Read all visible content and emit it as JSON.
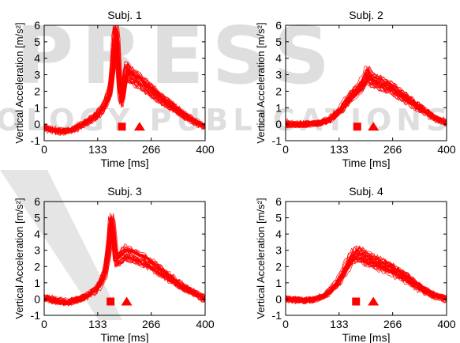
{
  "watermark": {
    "line1": "PRESS",
    "line2": "OLOGY PUBLICATIONS",
    "color": "#d9d9d9"
  },
  "chart_data": [
    {
      "type": "line",
      "title": "Subj. 1",
      "xlabel": "Time [ms]",
      "ylabel": "Vertical Acceleration [m/s²]",
      "xlim": [
        0,
        400
      ],
      "ylim": [
        -1,
        6
      ],
      "xticks": [
        0,
        133,
        266,
        400
      ],
      "yticks": [
        -1,
        0,
        1,
        2,
        3,
        4,
        5,
        6
      ],
      "grid": false,
      "color": "#ff0000",
      "n_traces": 40,
      "mean_curve": [
        [
          0,
          -0.2
        ],
        [
          20,
          -0.35
        ],
        [
          45,
          -0.45
        ],
        [
          70,
          -0.35
        ],
        [
          100,
          0.05
        ],
        [
          130,
          0.5
        ],
        [
          150,
          1.1
        ],
        [
          163,
          1.9
        ],
        [
          170,
          3.2
        ],
        [
          176,
          5.6
        ],
        [
          181,
          5.4
        ],
        [
          187,
          2.5
        ],
        [
          192,
          1.2
        ],
        [
          198,
          2.2
        ],
        [
          205,
          3.4
        ],
        [
          215,
          3.0
        ],
        [
          235,
          2.7
        ],
        [
          260,
          2.2
        ],
        [
          300,
          1.4
        ],
        [
          340,
          0.7
        ],
        [
          370,
          0.2
        ],
        [
          400,
          -0.15
        ]
      ],
      "markers": [
        {
          "shape": "square",
          "x": 193,
          "y": -0.15
        },
        {
          "shape": "triangle",
          "x": 237,
          "y": -0.15
        }
      ]
    },
    {
      "type": "line",
      "title": "Subj. 2",
      "xlabel": "Time [ms]",
      "ylabel": "Vertical Acceleration [m/s²]",
      "xlim": [
        0,
        400
      ],
      "ylim": [
        -1,
        6
      ],
      "xticks": [
        0,
        133,
        266,
        400
      ],
      "yticks": [
        -1,
        0,
        1,
        2,
        3,
        4,
        5,
        6
      ],
      "grid": false,
      "color": "#ff0000",
      "n_traces": 40,
      "mean_curve": [
        [
          0,
          0.0
        ],
        [
          40,
          0.0
        ],
        [
          80,
          0.05
        ],
        [
          110,
          0.3
        ],
        [
          140,
          1.0
        ],
        [
          160,
          1.7
        ],
        [
          180,
          2.2
        ],
        [
          195,
          2.6
        ],
        [
          203,
          3.2
        ],
        [
          210,
          2.8
        ],
        [
          230,
          2.6
        ],
        [
          260,
          2.3
        ],
        [
          300,
          1.6
        ],
        [
          340,
          0.9
        ],
        [
          370,
          0.4
        ],
        [
          400,
          0.1
        ]
      ],
      "markers": [
        {
          "shape": "square",
          "x": 178,
          "y": -0.15
        },
        {
          "shape": "triangle",
          "x": 218,
          "y": -0.15
        }
      ]
    },
    {
      "type": "line",
      "title": "Subj. 3",
      "xlabel": "Time [ms]",
      "ylabel": "Vertical Acceleration [m/s²]",
      "xlim": [
        0,
        400
      ],
      "ylim": [
        -1,
        6
      ],
      "xticks": [
        0,
        133,
        266,
        400
      ],
      "yticks": [
        -1,
        0,
        1,
        2,
        3,
        4,
        5,
        6
      ],
      "grid": false,
      "color": "#ff0000",
      "n_traces": 40,
      "mean_curve": [
        [
          0,
          0.1
        ],
        [
          30,
          -0.1
        ],
        [
          60,
          -0.2
        ],
        [
          100,
          0.1
        ],
        [
          130,
          0.6
        ],
        [
          150,
          1.5
        ],
        [
          160,
          3.0
        ],
        [
          166,
          4.8
        ],
        [
          172,
          3.8
        ],
        [
          178,
          2.3
        ],
        [
          185,
          2.4
        ],
        [
          200,
          2.8
        ],
        [
          225,
          2.6
        ],
        [
          260,
          2.2
        ],
        [
          300,
          1.5
        ],
        [
          340,
          0.8
        ],
        [
          370,
          0.4
        ],
        [
          400,
          0.0
        ]
      ],
      "markers": [
        {
          "shape": "square",
          "x": 165,
          "y": -0.15
        },
        {
          "shape": "triangle",
          "x": 205,
          "y": -0.15
        }
      ]
    },
    {
      "type": "line",
      "title": "Subj. 4",
      "xlabel": "Time [ms]",
      "ylabel": "Vertical Acceleration [m/s²]",
      "xlim": [
        0,
        400
      ],
      "ylim": [
        -1,
        6
      ],
      "xticks": [
        0,
        133,
        266,
        400
      ],
      "yticks": [
        -1,
        0,
        1,
        2,
        3,
        4,
        5,
        6
      ],
      "grid": false,
      "color": "#ff0000",
      "n_traces": 40,
      "mean_curve": [
        [
          0,
          0.0
        ],
        [
          40,
          -0.1
        ],
        [
          70,
          -0.05
        ],
        [
          100,
          0.2
        ],
        [
          130,
          1.0
        ],
        [
          150,
          1.9
        ],
        [
          165,
          2.6
        ],
        [
          180,
          2.8
        ],
        [
          200,
          2.5
        ],
        [
          230,
          2.2
        ],
        [
          260,
          1.9
        ],
        [
          300,
          1.3
        ],
        [
          340,
          0.6
        ],
        [
          370,
          0.2
        ],
        [
          400,
          0.0
        ]
      ],
      "markers": [
        {
          "shape": "square",
          "x": 175,
          "y": -0.15
        },
        {
          "shape": "triangle",
          "x": 218,
          "y": -0.15
        }
      ]
    }
  ]
}
